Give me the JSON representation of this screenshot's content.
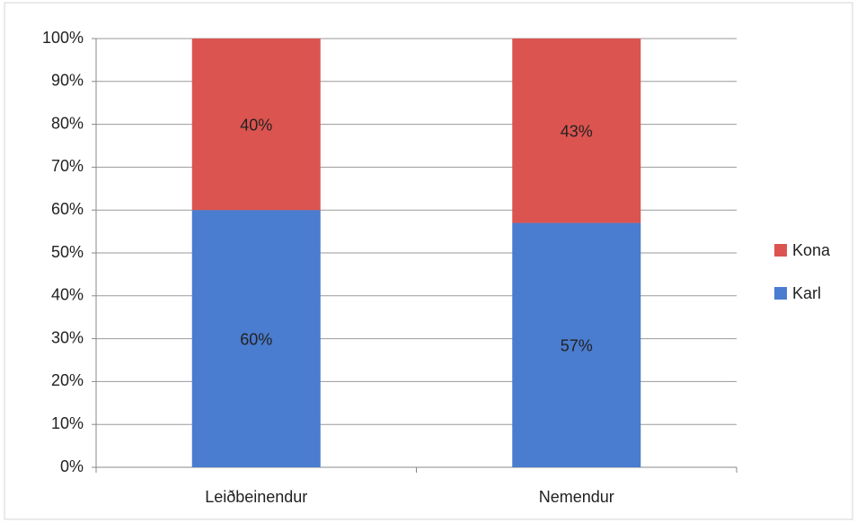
{
  "chart_data": {
    "type": "stacked-bar",
    "categories": [
      "Leiðbeinendur",
      "Nemendur"
    ],
    "series": [
      {
        "name": "Karl",
        "color": "#4a7ccf",
        "values": [
          60,
          57
        ],
        "value_labels": [
          "60%",
          "57%"
        ]
      },
      {
        "name": "Kona",
        "color": "#dc5450",
        "values": [
          40,
          43
        ],
        "value_labels": [
          "40%",
          "43%"
        ]
      }
    ],
    "ylim": [
      0,
      100
    ],
    "yticks": [
      {
        "value": 0,
        "label": "0%"
      },
      {
        "value": 10,
        "label": "10%"
      },
      {
        "value": 20,
        "label": "20%"
      },
      {
        "value": 30,
        "label": "30%"
      },
      {
        "value": 40,
        "label": "40%"
      },
      {
        "value": 50,
        "label": "50%"
      },
      {
        "value": 60,
        "label": "60%"
      },
      {
        "value": 70,
        "label": "70%"
      },
      {
        "value": 80,
        "label": "80%"
      },
      {
        "value": 90,
        "label": "90%"
      },
      {
        "value": 100,
        "label": "100%"
      }
    ],
    "grid": true,
    "legend": "right"
  }
}
